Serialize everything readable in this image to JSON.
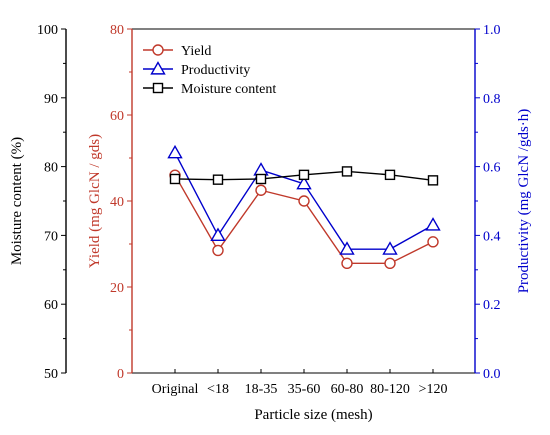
{
  "chart_data": {
    "type": "line",
    "categories": [
      "Original",
      "<18",
      "18-35",
      "35-60",
      "60-80",
      "80-120",
      ">120"
    ],
    "xlabel": "Particle size (mesh)",
    "axes": {
      "outer_left": {
        "label": "Moisture content (%)",
        "range": [
          50,
          100
        ],
        "ticks": [
          "50",
          "60",
          "70",
          "80",
          "90",
          "100"
        ],
        "color": "#000000"
      },
      "inner_left": {
        "label": "Yield (mg GlcN / gds)",
        "range": [
          0,
          80
        ],
        "ticks": [
          "0",
          "20",
          "40",
          "60",
          "80"
        ],
        "color": "#c0392b"
      },
      "right": {
        "label": "Productivity (mg GlcN /gds·h)",
        "range": [
          0.0,
          1.0
        ],
        "ticks": [
          "0.0",
          "0.2",
          "0.4",
          "0.6",
          "0.8",
          "1.0"
        ],
        "color": "#0000cc"
      }
    },
    "series": [
      {
        "name": "Yield",
        "axis": "inner_left",
        "marker": "circle",
        "color": "#c0392b",
        "values": [
          46,
          28.5,
          42.5,
          40,
          25.5,
          25.5,
          30.5
        ]
      },
      {
        "name": "Productivity",
        "axis": "right",
        "marker": "triangle",
        "color": "#0000cc",
        "values": [
          0.64,
          0.4,
          0.59,
          0.55,
          0.36,
          0.36,
          0.43
        ]
      },
      {
        "name": "Moisture content",
        "axis": "outer_left",
        "marker": "square",
        "color": "#000000",
        "values": [
          78.2,
          78.1,
          78.2,
          78.8,
          79.3,
          78.8,
          78.0
        ]
      }
    ],
    "legend": {
      "position": "top-left"
    },
    "grid": false
  }
}
